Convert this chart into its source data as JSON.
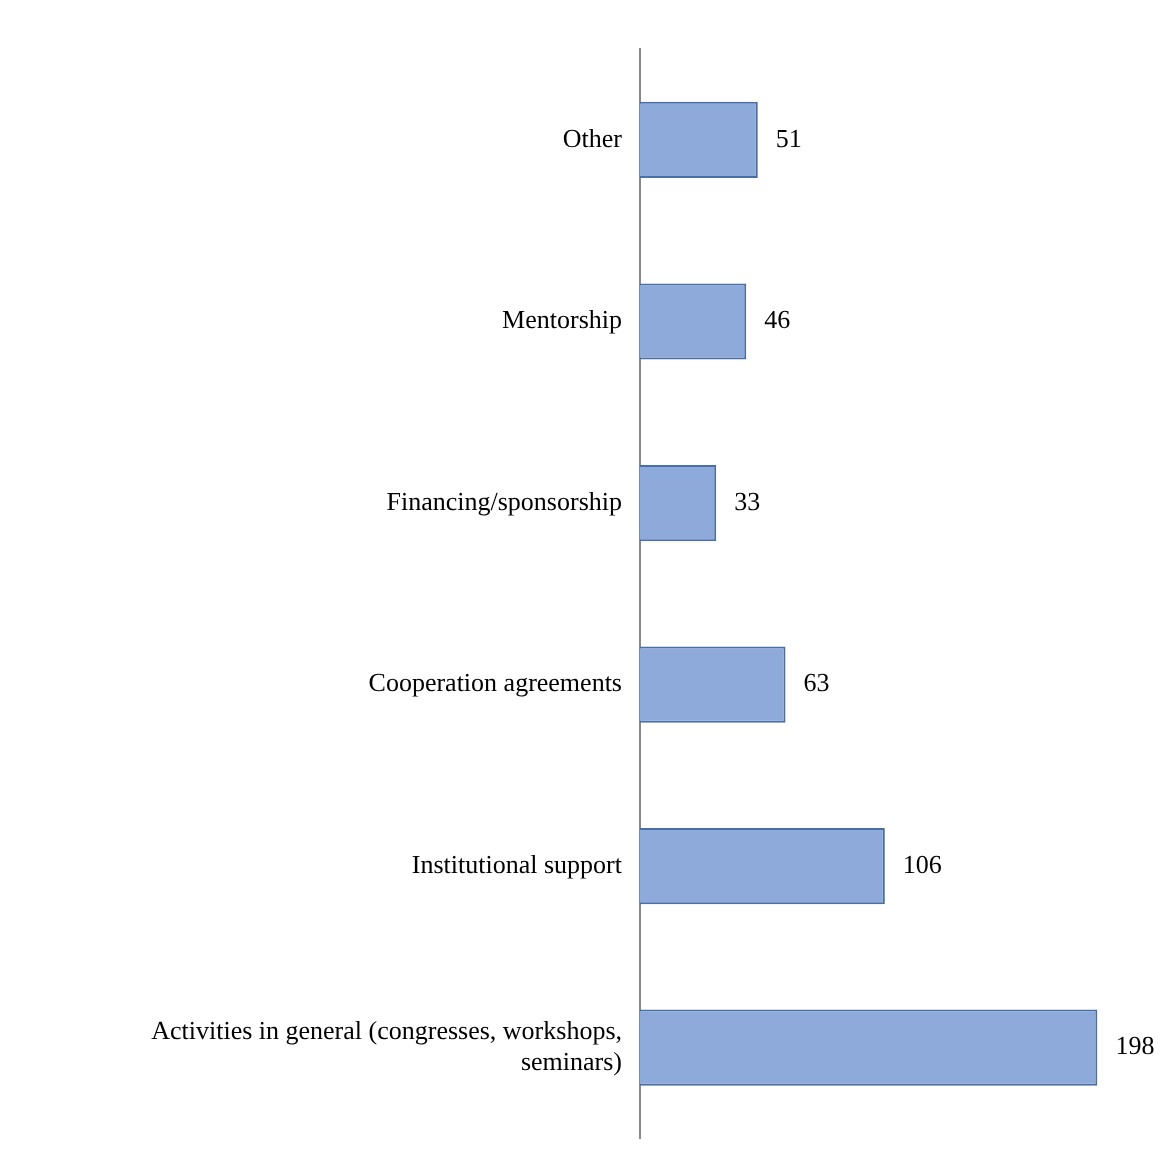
{
  "chart_data": {
    "type": "bar",
    "orientation": "horizontal",
    "categories": [
      "Other",
      "Mentorship",
      "Financing/sponsorship",
      "Cooperation agreements",
      "Institutional support",
      "Activities in general (congresses, workshops, seminars)"
    ],
    "values": [
      51,
      46,
      33,
      63,
      106,
      198
    ],
    "color": "#8eaadb",
    "data_labels": true,
    "tick_labels": "y",
    "grid": false,
    "legend": false
  }
}
